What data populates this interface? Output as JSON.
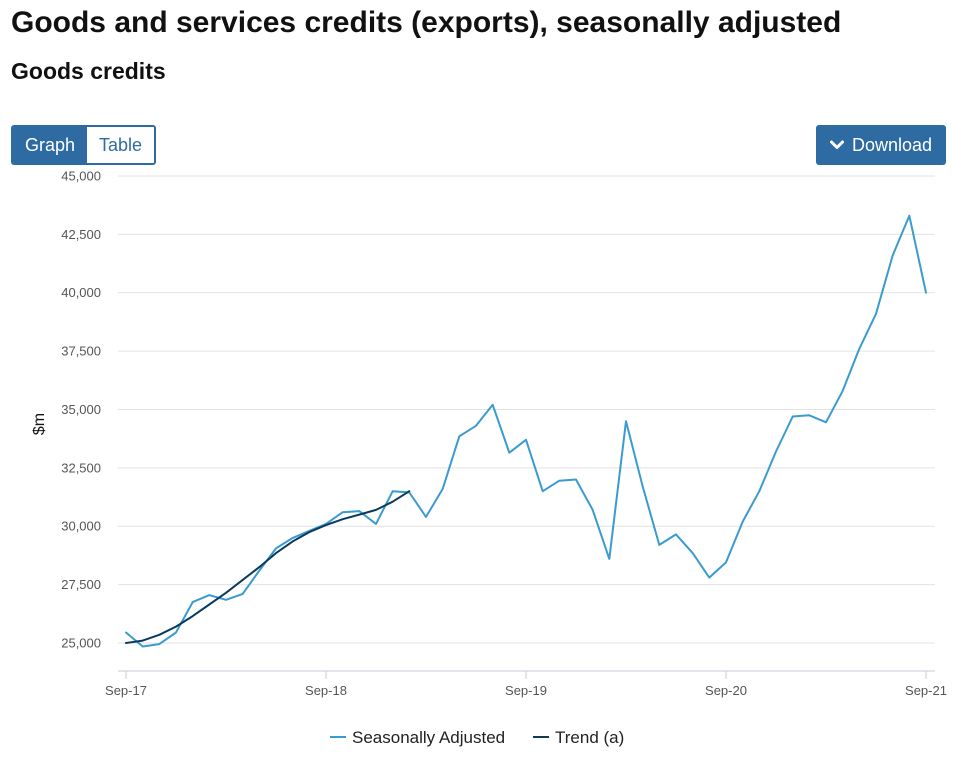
{
  "title": "Goods and services credits (exports), seasonally adjusted",
  "subtitle": "Goods credits",
  "view_toggle": {
    "graph_label": "Graph",
    "table_label": "Table",
    "active": "Graph"
  },
  "download_label": "Download",
  "icons": {
    "download": "chevron-down-icon"
  },
  "colors": {
    "accent": "#2e6ba2",
    "seasonally_adjusted": "#3a9bd0",
    "trend": "#0c3a5e"
  },
  "chart_data": {
    "type": "line",
    "title": "",
    "xlabel": "",
    "ylabel": "$m",
    "ylim": [
      23800,
      45000
    ],
    "yticks": [
      25000,
      27500,
      30000,
      32500,
      35000,
      37500,
      40000,
      42500,
      45000
    ],
    "ytick_labels": [
      "25,000",
      "27,500",
      "30,000",
      "32,500",
      "35,000",
      "37,500",
      "40,000",
      "42,500",
      "45,000"
    ],
    "x_count": 49,
    "xticks": [
      {
        "index": 0,
        "label": "Sep-17"
      },
      {
        "index": 12,
        "label": "Sep-18"
      },
      {
        "index": 24,
        "label": "Sep-19"
      },
      {
        "index": 36,
        "label": "Sep-20"
      },
      {
        "index": 48,
        "label": "Sep-21"
      }
    ],
    "series": [
      {
        "name": "Seasonally Adjusted",
        "values": [
          25450,
          24850,
          24950,
          25450,
          26750,
          27050,
          26850,
          27100,
          28100,
          29050,
          29500,
          29800,
          30100,
          30600,
          30650,
          30100,
          31500,
          31450,
          30400,
          31600,
          33850,
          34300,
          35200,
          33150,
          33700,
          31500,
          31950,
          32000,
          30700,
          28600,
          34500,
          31700,
          29200,
          29650,
          28850,
          27800,
          28450,
          30200,
          31500,
          33200,
          34700,
          34750,
          34450,
          35800,
          37600,
          39100,
          41600,
          43300,
          40000
        ]
      },
      {
        "name": "Trend (a)",
        "values": [
          25000,
          25100,
          25350,
          25700,
          26150,
          26650,
          27150,
          27700,
          28250,
          28850,
          29350,
          29750,
          30050,
          30300,
          30500,
          30700,
          31050,
          31500
        ]
      }
    ],
    "legend": [
      "Seasonally Adjusted",
      "Trend (a)"
    ],
    "legend_position": "bottom",
    "grid": true
  }
}
